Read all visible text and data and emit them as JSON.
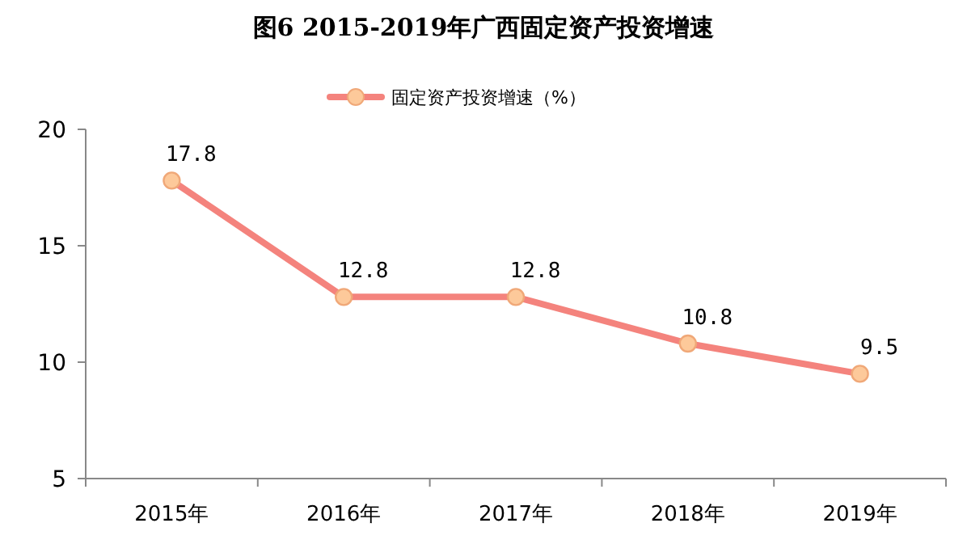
{
  "chart_data": {
    "type": "line",
    "title": "图6  2015-2019年广西固定资产投资增速",
    "categories": [
      "2015年",
      "2016年",
      "2017年",
      "2018年",
      "2019年"
    ],
    "series": [
      {
        "name": "固定资产投资增速（%）",
        "color": "#f4837d",
        "values": [
          17.8,
          12.8,
          12.8,
          10.8,
          9.5
        ]
      }
    ],
    "ylim": [
      5,
      20
    ],
    "yticks": [
      5,
      10,
      15,
      20
    ],
    "grid": false,
    "legend": "top",
    "marker": "circle",
    "line_style": "solid",
    "data_labels": true
  }
}
